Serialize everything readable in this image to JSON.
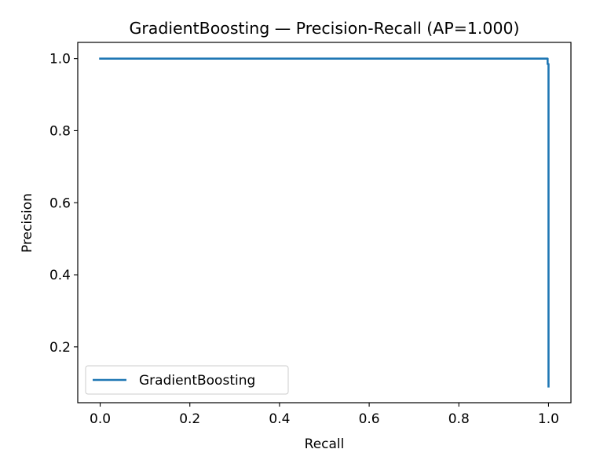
{
  "chart_data": {
    "type": "line",
    "title": "GradientBoosting — Precision-Recall (AP=1.000)",
    "xlabel": "Recall",
    "ylabel": "Precision",
    "xlim": [
      -0.05,
      1.05
    ],
    "ylim": [
      0.045,
      1.045
    ],
    "x_ticks": [
      0.0,
      0.2,
      0.4,
      0.6,
      0.8,
      1.0
    ],
    "x_tick_labels": [
      "0.0",
      "0.2",
      "0.4",
      "0.6",
      "0.8",
      "1.0"
    ],
    "y_ticks": [
      0.2,
      0.4,
      0.6,
      0.8,
      1.0
    ],
    "y_tick_labels": [
      "0.2",
      "0.4",
      "0.6",
      "0.8",
      "1.0"
    ],
    "grid": false,
    "legend": "lower-left",
    "series": [
      {
        "name": "GradientBoosting",
        "color": "#1f77b4",
        "x": [
          0.0,
          0.5,
          0.995,
          0.998,
          0.998,
          1.0,
          1.0
        ],
        "y": [
          1.0,
          1.0,
          1.0,
          1.0,
          0.985,
          0.985,
          0.09
        ]
      }
    ]
  }
}
